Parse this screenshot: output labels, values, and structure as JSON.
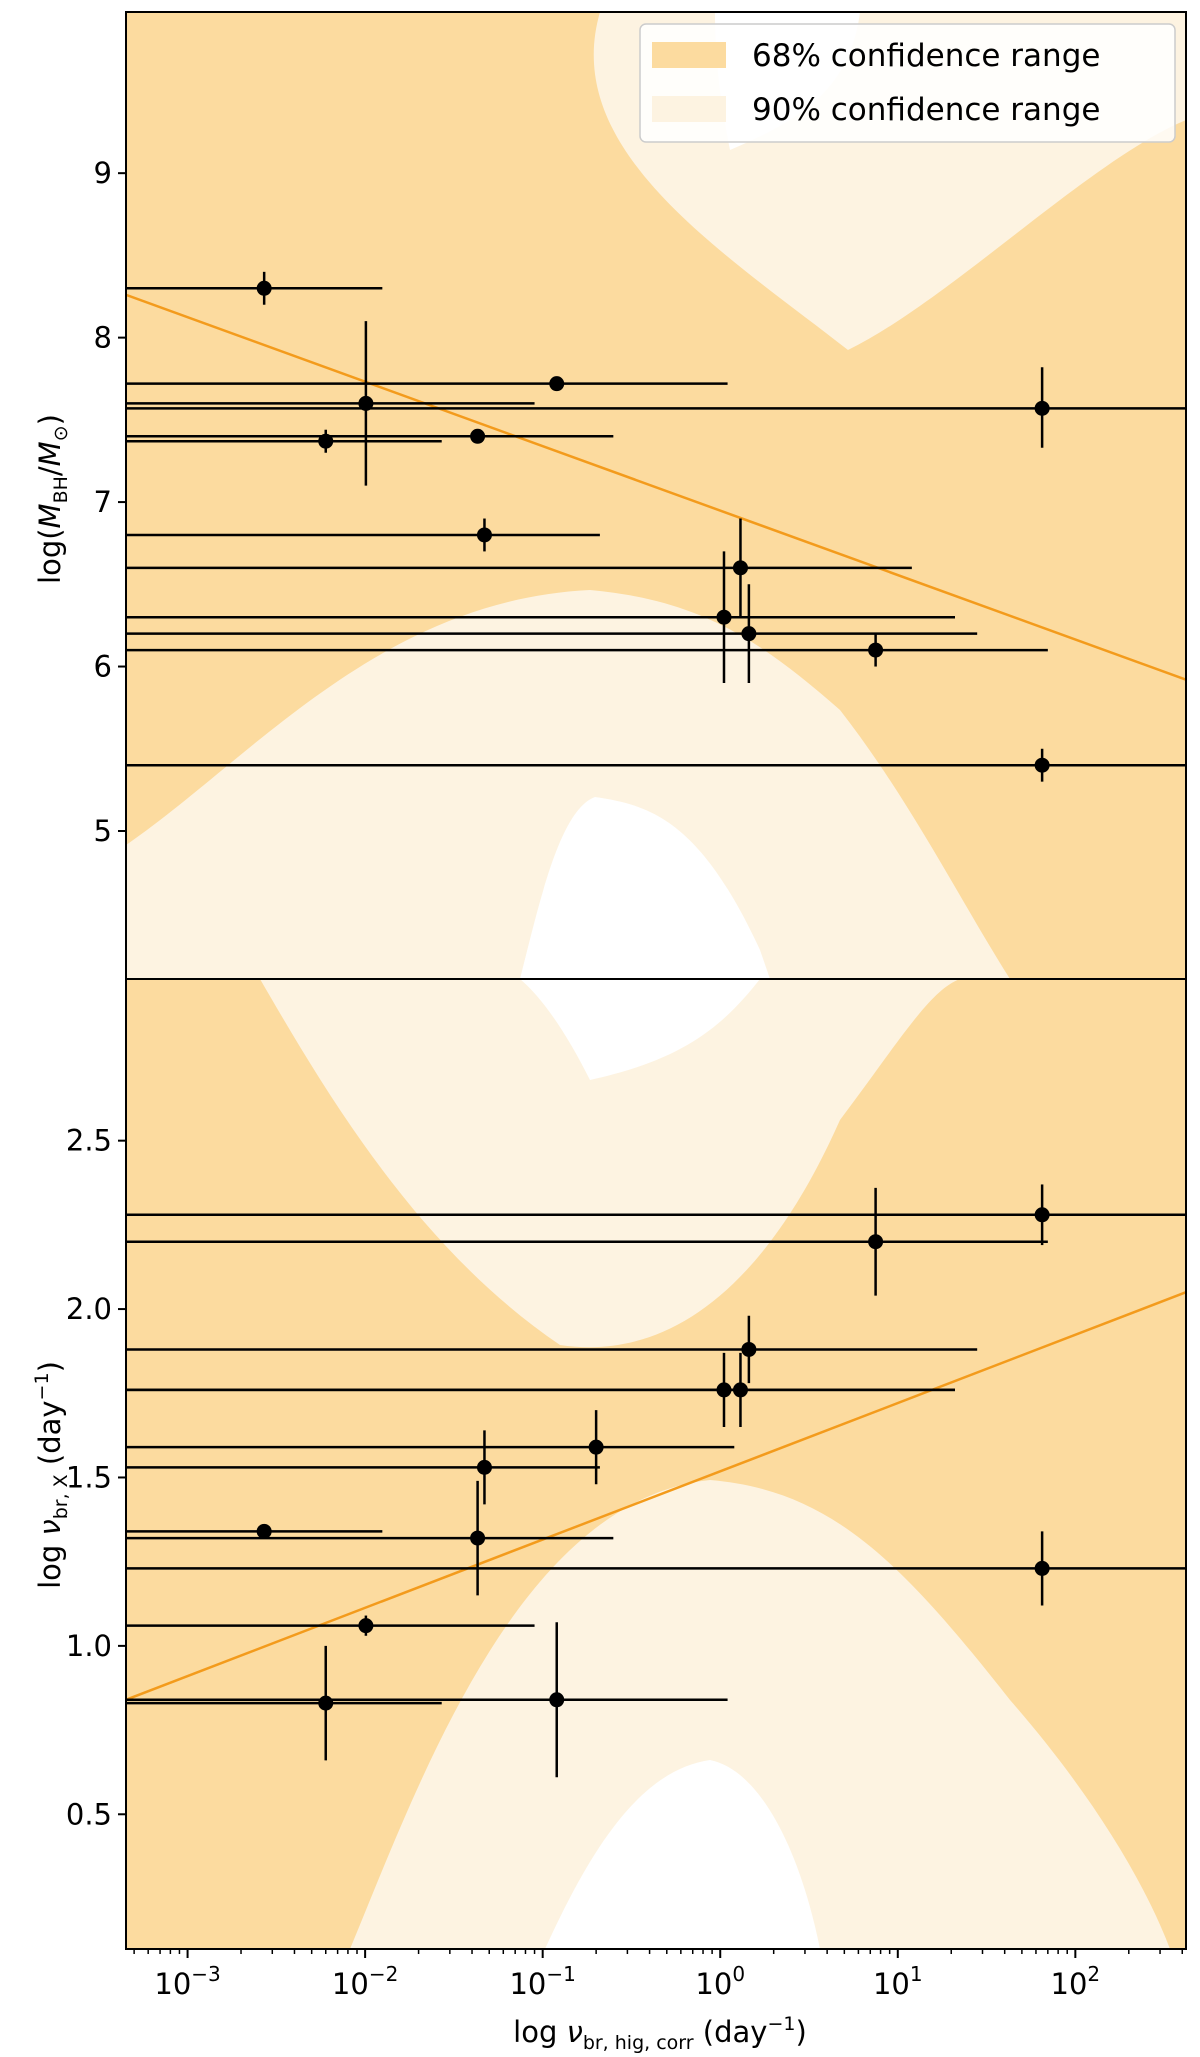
{
  "colors": {
    "band68": "#FCDB9F",
    "band90": "#FDF3E1",
    "fit_line": "#F39B1C",
    "points": "#000000"
  },
  "legend": {
    "entry68": "68% confidence range",
    "entry90": "90% confidence range",
    "placement": "top-right"
  },
  "chart_data": [
    {
      "type": "scatter",
      "panel": "top",
      "ylabel": "log(M_BH/M_⊙)",
      "ylabel_parts": {
        "prefix": "log(",
        "m1": "M",
        "sub1": "BH",
        "slash": "/",
        "m2": "M",
        "sub2": "⊙",
        "suffix": ")"
      },
      "ylim": [
        4.1,
        9.98
      ],
      "yticks": [
        5,
        6,
        7,
        8,
        9
      ],
      "fit_line": {
        "x": [
          0.00045,
          420
        ],
        "y": [
          8.26,
          5.92
        ]
      },
      "points": [
        {
          "x": 0.0027,
          "y": 8.3,
          "xerr_lo": 0.00045,
          "xerr_hi": 0.0125,
          "yerr_lo": 8.2,
          "yerr_hi": 8.4
        },
        {
          "x": 0.0101,
          "y": 7.6,
          "xerr_lo": 0.00045,
          "xerr_hi": 0.09,
          "yerr_lo": 7.1,
          "yerr_hi": 8.1
        },
        {
          "x": 0.006,
          "y": 7.37,
          "xerr_lo": 0.00045,
          "xerr_hi": 0.027,
          "yerr_lo": 7.3,
          "yerr_hi": 7.44
        },
        {
          "x": 0.043,
          "y": 7.4,
          "xerr_lo": 0.00045,
          "xerr_hi": 0.25,
          "yerr_lo": 7.37,
          "yerr_hi": 7.43
        },
        {
          "x": 0.12,
          "y": 7.72,
          "xerr_lo": 0.00045,
          "xerr_hi": 1.1,
          "yerr_lo": 7.69,
          "yerr_hi": 7.75
        },
        {
          "x": 0.047,
          "y": 6.8,
          "xerr_lo": 0.00045,
          "xerr_hi": 0.21,
          "yerr_lo": 6.7,
          "yerr_hi": 6.9
        },
        {
          "x": 1.3,
          "y": 6.6,
          "xerr_lo": 0.00045,
          "xerr_hi": 12,
          "yerr_lo": 6.3,
          "yerr_hi": 6.9
        },
        {
          "x": 1.05,
          "y": 6.3,
          "xerr_lo": 0.00045,
          "xerr_hi": 21,
          "yerr_lo": 5.9,
          "yerr_hi": 6.7
        },
        {
          "x": 1.45,
          "y": 6.2,
          "xerr_lo": 0.00045,
          "xerr_hi": 28,
          "yerr_lo": 5.9,
          "yerr_hi": 6.5
        },
        {
          "x": 7.5,
          "y": 6.1,
          "xerr_lo": 0.00045,
          "xerr_hi": 70,
          "yerr_lo": 6.0,
          "yerr_hi": 6.2
        },
        {
          "x": 65,
          "y": 7.57,
          "xerr_lo": 0.00045,
          "xerr_hi": 420,
          "yerr_lo": 7.33,
          "yerr_hi": 7.82
        },
        {
          "x": 65,
          "y": 5.4,
          "xerr_lo": 0.00045,
          "xerr_hi": 420,
          "yerr_lo": 5.3,
          "yerr_hi": 5.5
        }
      ]
    },
    {
      "type": "scatter",
      "panel": "bottom",
      "xlabel": "log ν_br, hig, corr (day⁻¹)",
      "xlabel_parts": {
        "prefix": "log ",
        "nu": "ν",
        "sub": "br, hig, corr",
        "unit": " (day",
        "sup": "−1",
        "close": ")"
      },
      "ylabel": "log ν_br, X (day⁻¹)",
      "ylabel_parts": {
        "prefix": "log ",
        "nu": "ν",
        "sub": "br, X",
        "unit": " (day",
        "sup": "−1",
        "close": ")"
      },
      "xscale": "log",
      "xlim": [
        0.00045,
        420
      ],
      "xticks": [
        {
          "value": 0.001,
          "base": "10",
          "exp": "−3"
        },
        {
          "value": 0.01,
          "base": "10",
          "exp": "−2"
        },
        {
          "value": 0.1,
          "base": "10",
          "exp": "−1"
        },
        {
          "value": 1,
          "base": "10",
          "exp": "0"
        },
        {
          "value": 10,
          "base": "10",
          "exp": "1"
        },
        {
          "value": 100,
          "base": "10",
          "exp": "2"
        }
      ],
      "ylim": [
        0.1,
        2.98
      ],
      "yticks": [
        "0.5",
        "1.0",
        "1.5",
        "2.0",
        "2.5"
      ],
      "fit_line": {
        "x": [
          0.00045,
          420
        ],
        "y": [
          0.84,
          2.05
        ]
      },
      "points": [
        {
          "x": 65,
          "y": 2.28,
          "xerr_lo": 0.00045,
          "xerr_hi": 420,
          "yerr_lo": 2.19,
          "yerr_hi": 2.37
        },
        {
          "x": 7.5,
          "y": 2.2,
          "xerr_lo": 0.00045,
          "xerr_hi": 70,
          "yerr_lo": 2.04,
          "yerr_hi": 2.36
        },
        {
          "x": 1.45,
          "y": 1.88,
          "xerr_lo": 0.00045,
          "xerr_hi": 28,
          "yerr_lo": 1.78,
          "yerr_hi": 1.98
        },
        {
          "x": 1.05,
          "y": 1.76,
          "xerr_lo": 0.00045,
          "xerr_hi": 21,
          "yerr_lo": 1.65,
          "yerr_hi": 1.87
        },
        {
          "x": 1.3,
          "y": 1.76,
          "xerr_lo": 0.00045,
          "xerr_hi": 21,
          "yerr_lo": 1.65,
          "yerr_hi": 1.87
        },
        {
          "x": 0.2,
          "y": 1.59,
          "xerr_lo": 0.00045,
          "xerr_hi": 1.2,
          "yerr_lo": 1.48,
          "yerr_hi": 1.7
        },
        {
          "x": 0.047,
          "y": 1.53,
          "xerr_lo": 0.00045,
          "xerr_hi": 0.21,
          "yerr_lo": 1.42,
          "yerr_hi": 1.64
        },
        {
          "x": 0.0027,
          "y": 1.34,
          "xerr_lo": 0.00045,
          "xerr_hi": 0.0125,
          "yerr_lo": 1.32,
          "yerr_hi": 1.36
        },
        {
          "x": 0.043,
          "y": 1.32,
          "xerr_lo": 0.00045,
          "xerr_hi": 0.25,
          "yerr_lo": 1.15,
          "yerr_hi": 1.49
        },
        {
          "x": 65,
          "y": 1.23,
          "xerr_lo": 0.00045,
          "xerr_hi": 420,
          "yerr_lo": 1.12,
          "yerr_hi": 1.34
        },
        {
          "x": 0.0101,
          "y": 1.06,
          "xerr_lo": 0.00045,
          "xerr_hi": 0.09,
          "yerr_lo": 1.03,
          "yerr_hi": 1.09
        },
        {
          "x": 0.006,
          "y": 0.83,
          "xerr_lo": 0.00045,
          "xerr_hi": 0.027,
          "yerr_lo": 0.66,
          "yerr_hi": 1.0
        },
        {
          "x": 0.12,
          "y": 0.84,
          "xerr_lo": 0.00045,
          "xerr_hi": 1.1,
          "yerr_lo": 0.61,
          "yerr_hi": 1.07
        }
      ]
    }
  ]
}
